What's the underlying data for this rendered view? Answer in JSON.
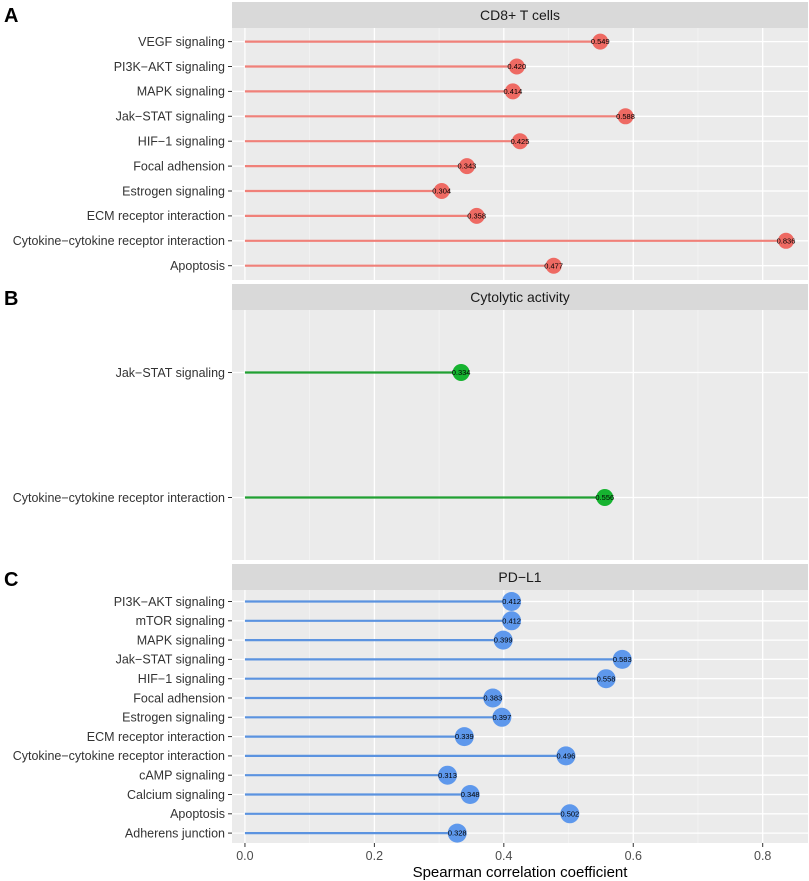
{
  "x_axis": {
    "label": "Spearman correlation coefficient",
    "ticks": [
      0.0,
      0.2,
      0.4,
      0.6,
      0.8
    ],
    "tick_labels": [
      "0.0",
      "0.2",
      "0.4",
      "0.6",
      "0.8"
    ],
    "xlim": [
      -0.02,
      0.87
    ]
  },
  "chart_data": [
    {
      "type": "lollipop",
      "panel_label": "A",
      "title": "CD8+ T cells",
      "color": "#f08079",
      "dot_color": "#ee6a63",
      "categories": [
        "VEGF signaling",
        "PI3K−AKT signaling",
        "MAPK signaling",
        "Jak−STAT signaling",
        "HIF−1 signaling",
        "Focal adhension",
        "Estrogen signaling",
        "ECM receptor interaction",
        "Cytokine−cytokine receptor interaction",
        "Apoptosis"
      ],
      "values": [
        0.549,
        0.42,
        0.414,
        0.588,
        0.425,
        0.343,
        0.304,
        0.358,
        0.836,
        0.477
      ],
      "value_labels": [
        "0.549",
        "0.420",
        "0.414",
        "0.588",
        "0.425",
        "0.343",
        "0.304",
        "0.358",
        "0.836",
        "0.477"
      ],
      "xlabel": "Spearman correlation coefficient",
      "xlim": [
        -0.02,
        0.87
      ]
    },
    {
      "type": "lollipop",
      "panel_label": "B",
      "title": "Cytolytic activity",
      "color": "#21a032",
      "dot_color": "#16b330",
      "categories": [
        "Jak−STAT signaling",
        "Cytokine−cytokine receptor interaction"
      ],
      "values": [
        0.334,
        0.556
      ],
      "value_labels": [
        "0.334",
        "0.556"
      ],
      "xlabel": "Spearman correlation coefficient",
      "xlim": [
        -0.02,
        0.87
      ]
    },
    {
      "type": "lollipop",
      "panel_label": "C",
      "title": "PD−L1",
      "color": "#5b93e0",
      "dot_color": "#5e98ec",
      "categories": [
        "PI3K−AKT signaling",
        "mTOR signaling",
        "MAPK signaling",
        "Jak−STAT signaling",
        "HIF−1 signaling",
        "Focal adhension",
        "Estrogen signaling",
        "ECM receptor interaction",
        "Cytokine−cytokine receptor interaction",
        "cAMP signaling",
        "Calcium signaling",
        "Apoptosis",
        "Adherens junction"
      ],
      "values": [
        0.412,
        0.412,
        0.399,
        0.583,
        0.558,
        0.383,
        0.397,
        0.339,
        0.496,
        0.313,
        0.348,
        0.502,
        0.328
      ],
      "value_labels": [
        "0.412",
        "0.412",
        "0.399",
        "0.583",
        "0.558",
        "0.383",
        "0.397",
        "0.339",
        "0.496",
        "0.313",
        "0.348",
        "0.502",
        "0.328"
      ],
      "xlabel": "Spearman correlation coefficient",
      "xlim": [
        -0.02,
        0.87
      ]
    }
  ]
}
